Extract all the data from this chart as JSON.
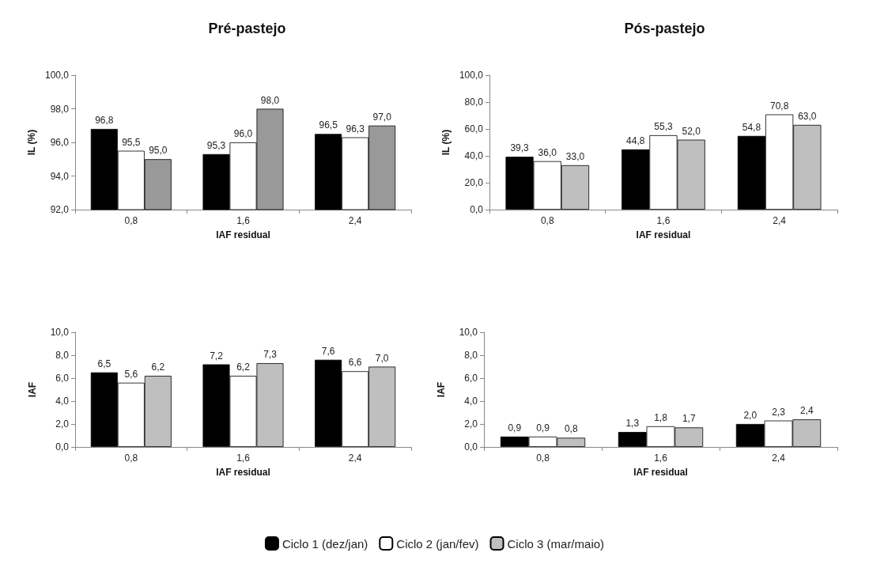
{
  "chart_data": [
    {
      "type": "bar",
      "title": "Pré-pastejo",
      "xlabel": "IAF residual",
      "ylabel": "IL (%)",
      "categories": [
        "0,8",
        "1,6",
        "2,4"
      ],
      "ylim": [
        92,
        100
      ],
      "yticks": [
        {
          "value": 92,
          "label": "92,0"
        },
        {
          "value": 94,
          "label": "94,0"
        },
        {
          "value": 96,
          "label": "96,0"
        },
        {
          "value": 98,
          "label": "98,0"
        },
        {
          "value": 100,
          "label": "100,0"
        }
      ],
      "grid": false,
      "legend": false,
      "series": [
        {
          "color": "#000000",
          "values": [
            96.8,
            95.3,
            96.5
          ],
          "value_labels": [
            "96,8",
            "95,3",
            "96,5"
          ]
        },
        {
          "color": "#ffffff",
          "values": [
            95.5,
            96.0,
            96.3
          ],
          "value_labels": [
            "95,5",
            "96,0",
            "96,3"
          ]
        },
        {
          "color": "#999999",
          "values": [
            95.0,
            98.0,
            97.0
          ],
          "value_labels": [
            "95,0",
            "98,0",
            "97,0"
          ]
        }
      ]
    },
    {
      "type": "bar",
      "title": "Pós-pastejo",
      "xlabel": "IAF residual",
      "ylabel": "IL (%)",
      "categories": [
        "0,8",
        "1,6",
        "2,4"
      ],
      "ylim": [
        0,
        100
      ],
      "yticks": [
        {
          "value": 0,
          "label": "0,0"
        },
        {
          "value": 20,
          "label": "20,0"
        },
        {
          "value": 40,
          "label": "40,0"
        },
        {
          "value": 60,
          "label": "60,0"
        },
        {
          "value": 80,
          "label": "80,0"
        },
        {
          "value": 100,
          "label": "100,0"
        }
      ],
      "grid": false,
      "legend": false,
      "series": [
        {
          "color": "#000000",
          "values": [
            39.3,
            44.8,
            54.8
          ],
          "value_labels": [
            "39,3",
            "44,8",
            "54,8"
          ]
        },
        {
          "color": "#ffffff",
          "values": [
            36.0,
            55.3,
            70.8
          ],
          "value_labels": [
            "36,0",
            "55,3",
            "70,8"
          ]
        },
        {
          "color": "#bfbfbf",
          "values": [
            33.0,
            52.0,
            63.0
          ],
          "value_labels": [
            "33,0",
            "52,0",
            "63,0"
          ]
        }
      ]
    },
    {
      "type": "bar",
      "xlabel": "IAF residual",
      "ylabel": "IAF",
      "categories": [
        "0,8",
        "1,6",
        "2,4"
      ],
      "ylim": [
        0,
        10
      ],
      "yticks": [
        {
          "value": 0,
          "label": "0,0"
        },
        {
          "value": 2,
          "label": "2,0"
        },
        {
          "value": 4,
          "label": "4,0"
        },
        {
          "value": 6,
          "label": "6,0"
        },
        {
          "value": 8,
          "label": "8,0"
        },
        {
          "value": 10,
          "label": "10,0"
        }
      ],
      "grid": false,
      "legend": false,
      "series": [
        {
          "color": "#000000",
          "values": [
            6.5,
            7.2,
            7.6
          ],
          "value_labels": [
            "6,5",
            "7,2",
            "7,6"
          ]
        },
        {
          "color": "#ffffff",
          "values": [
            5.6,
            6.2,
            6.6
          ],
          "value_labels": [
            "5,6",
            "6,2",
            "6,6"
          ]
        },
        {
          "color": "#bfbfbf",
          "values": [
            6.2,
            7.3,
            7.0
          ],
          "value_labels": [
            "6,2",
            "7,3",
            "7,0"
          ]
        }
      ]
    },
    {
      "type": "bar",
      "xlabel": "IAF residual",
      "ylabel": "IAF",
      "categories": [
        "0,8",
        "1,6",
        "2,4"
      ],
      "ylim": [
        0,
        10
      ],
      "yticks": [
        {
          "value": 0,
          "label": "0,0"
        },
        {
          "value": 2,
          "label": "2,0"
        },
        {
          "value": 4,
          "label": "4,0"
        },
        {
          "value": 6,
          "label": "6,0"
        },
        {
          "value": 8,
          "label": "8,0"
        },
        {
          "value": 10,
          "label": "10,0"
        }
      ],
      "grid": false,
      "legend": "bottom",
      "series": [
        {
          "name": "Ciclo 1 (dez/jan)",
          "color": "#000000",
          "values": [
            0.9,
            1.3,
            2.0
          ],
          "value_labels": [
            "0,9",
            "1,3",
            "2,0"
          ]
        },
        {
          "name": "Ciclo 2 (jan/fev)",
          "color": "#ffffff",
          "values": [
            0.9,
            1.8,
            2.3
          ],
          "value_labels": [
            "0,9",
            "1,8",
            "2,3"
          ]
        },
        {
          "name": "Ciclo 3 (mar/maio)",
          "color": "#bfbfbf",
          "values": [
            0.8,
            1.7,
            2.4
          ],
          "value_labels": [
            "0,8",
            "1,7",
            "2,4"
          ]
        }
      ]
    }
  ]
}
